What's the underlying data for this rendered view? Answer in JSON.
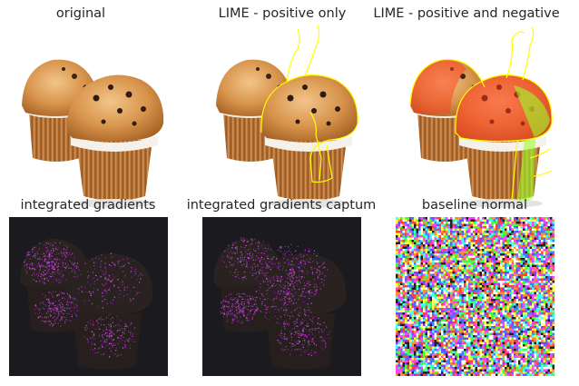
{
  "figure": {
    "panels": [
      {
        "title": "original"
      },
      {
        "title": "LIME - positive only"
      },
      {
        "title": "LIME - positive and negative"
      },
      {
        "title": "integrated gradients"
      },
      {
        "title": "integrated gradients captum"
      },
      {
        "title": "baseline normal"
      }
    ]
  },
  "colors": {
    "muffin_top": "#d99a4e",
    "wrapper": "#c9803f",
    "lime_boundary": "#ffff00",
    "lime_negative": "#ff3b1f",
    "lime_positive": "#9cff2a",
    "attribution_bg": "#1b1a1e",
    "attribution_dots": "#b23cff"
  }
}
